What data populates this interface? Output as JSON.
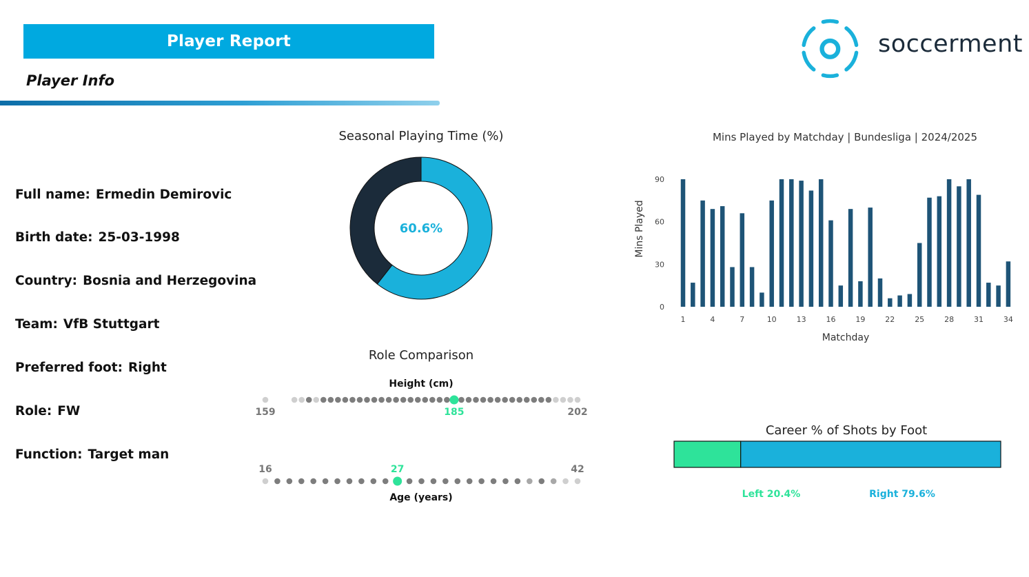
{
  "header": {
    "title": "Player Report",
    "section": "Player Info"
  },
  "brand": {
    "name": "soccerment",
    "accent": "#00a9e0"
  },
  "player": [
    {
      "label": "Full name:",
      "value": "Ermedin Demirovic"
    },
    {
      "label": "Birth date:",
      "value": "25-03-1998"
    },
    {
      "label": "Country:",
      "value": "Bosnia and Herzegovina"
    },
    {
      "label": "Team:",
      "value": "VfB Stuttgart"
    },
    {
      "label": "Preferred foot:",
      "value": "Right"
    },
    {
      "label": "Role:",
      "value": "FW"
    },
    {
      "label": "Function:",
      "value": "Target man"
    }
  ],
  "chart_data": [
    {
      "type": "pie",
      "title": "Seasonal Playing Time (%)",
      "center_label": "60.6%",
      "slices": [
        {
          "value": 60.6,
          "color": "#1ab1db"
        },
        {
          "value": 39.4,
          "color": "#1b2b3a"
        }
      ]
    },
    {
      "type": "bar",
      "title": "Mins Played by Matchday | Bundesliga | 2024/2025",
      "xlabel": "Matchday",
      "ylabel": "Mins Played",
      "xticks": [
        "1",
        "4",
        "7",
        "10",
        "13",
        "16",
        "19",
        "22",
        "25",
        "28",
        "31",
        "34"
      ],
      "yticks": [
        "0",
        "30",
        "60",
        "90"
      ],
      "ylim": [
        0,
        90
      ],
      "color": "#1e5477",
      "categories": [
        1,
        2,
        3,
        4,
        5,
        6,
        7,
        8,
        9,
        10,
        11,
        12,
        13,
        14,
        15,
        16,
        17,
        18,
        19,
        20,
        21,
        22,
        23,
        24,
        25,
        26,
        27,
        28,
        29,
        30,
        31,
        32,
        33,
        34
      ],
      "values": [
        90,
        17,
        75,
        69,
        71,
        28,
        66,
        28,
        10,
        75,
        90,
        90,
        89,
        82,
        90,
        61,
        15,
        69,
        18,
        70,
        20,
        6,
        8,
        9,
        45,
        77,
        78,
        90,
        85,
        90,
        79,
        17,
        15,
        32
      ]
    },
    {
      "type": "scatter",
      "title": "Role Comparison",
      "rows": [
        {
          "label": "Height (cm)",
          "min": 159,
          "max": 202,
          "value": 185,
          "min_label": "159",
          "max_label": "202",
          "value_label": "185",
          "points": [
            159,
            163,
            164,
            165,
            166,
            167,
            168,
            169,
            170,
            171,
            172,
            173,
            174,
            175,
            176,
            177,
            178,
            179,
            180,
            181,
            182,
            183,
            184,
            185,
            186,
            187,
            188,
            189,
            190,
            191,
            192,
            193,
            194,
            195,
            196,
            197,
            198,
            199,
            200,
            201,
            202
          ],
          "levels": [
            0,
            0,
            0,
            2,
            0,
            2,
            2,
            2,
            2,
            2,
            2,
            2,
            2,
            2,
            2,
            2,
            2,
            2,
            2,
            2,
            2,
            2,
            2,
            9,
            2,
            2,
            2,
            2,
            2,
            2,
            2,
            2,
            2,
            2,
            2,
            2,
            2,
            0,
            0,
            0,
            0
          ]
        },
        {
          "label": "Age (years)",
          "min": 16,
          "max": 42,
          "value": 27,
          "min_label": "16",
          "max_label": "42",
          "value_label": "27",
          "points": [
            16,
            17,
            18,
            19,
            20,
            21,
            22,
            23,
            24,
            25,
            26,
            27,
            28,
            29,
            30,
            31,
            32,
            33,
            34,
            35,
            36,
            37,
            38,
            39,
            40,
            41,
            42
          ],
          "levels": [
            0,
            2,
            2,
            2,
            2,
            2,
            2,
            2,
            2,
            2,
            2,
            9,
            2,
            2,
            2,
            2,
            2,
            2,
            2,
            2,
            2,
            2,
            1,
            2,
            1,
            0,
            0
          ]
        }
      ],
      "colors": {
        "highlight": "#2ee39a",
        "dark": "#7d7d7d",
        "light": "#cfcfcf",
        "label": "#777777"
      }
    },
    {
      "type": "bar",
      "title": "Career % of Shots by Foot",
      "series": [
        {
          "name": "Left",
          "value": 20.4,
          "label": "Left 20.4%",
          "color": "#2ee39a"
        },
        {
          "name": "Right",
          "value": 79.6,
          "label": "Right 79.6%",
          "color": "#1ab1db"
        }
      ]
    }
  ]
}
